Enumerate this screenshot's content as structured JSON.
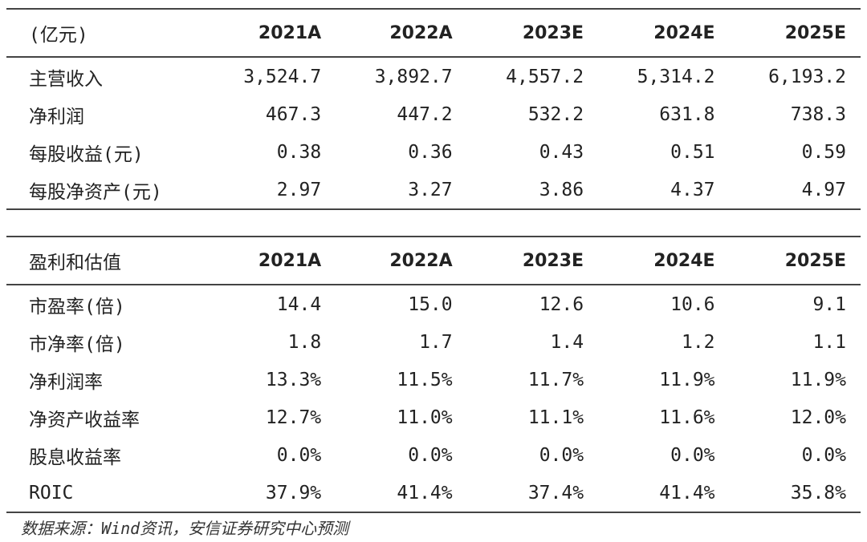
{
  "table1": {
    "header": [
      "(亿元)",
      "2021A",
      "2022A",
      "2023E",
      "2024E",
      "2025E"
    ],
    "rows": [
      [
        "主营收入",
        "3,524.7",
        "3,892.7",
        "4,557.2",
        "5,314.2",
        "6,193.2"
      ],
      [
        "净利润",
        "467.3",
        "447.2",
        "532.2",
        "631.8",
        "738.3"
      ],
      [
        "每股收益(元)",
        "0.38",
        "0.36",
        "0.43",
        "0.51",
        "0.59"
      ],
      [
        "每股净资产(元)",
        "2.97",
        "3.27",
        "3.86",
        "4.37",
        "4.97"
      ]
    ]
  },
  "table2": {
    "header": [
      "盈利和估值",
      "2021A",
      "2022A",
      "2023E",
      "2024E",
      "2025E"
    ],
    "rows": [
      [
        "市盈率(倍)",
        "14.4",
        "15.0",
        "12.6",
        "10.6",
        "9.1"
      ],
      [
        "市净率(倍)",
        "1.8",
        "1.7",
        "1.4",
        "1.2",
        "1.1"
      ],
      [
        "净利润率",
        "13.3%",
        "11.5%",
        "11.7%",
        "11.9%",
        "11.9%"
      ],
      [
        "净资产收益率",
        "12.7%",
        "11.0%",
        "11.1%",
        "11.6%",
        "12.0%"
      ],
      [
        "股息收益率",
        "0.0%",
        "0.0%",
        "0.0%",
        "0.0%",
        "0.0%"
      ],
      [
        "ROIC",
        "37.9%",
        "41.4%",
        "37.4%",
        "41.4%",
        "35.8%"
      ]
    ]
  },
  "source_note": "数据来源：Wind资讯，安信证券研究中心预测"
}
